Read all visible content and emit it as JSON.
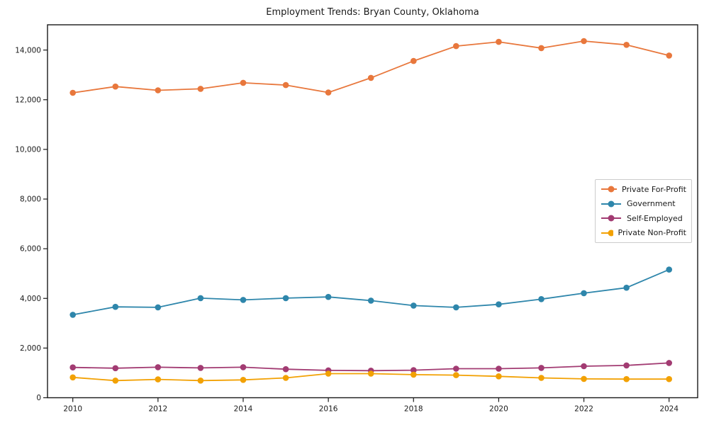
{
  "figure": {
    "background": "#ffffff",
    "text_color": "#1a1a1a",
    "axis_color": "#1a1a1a"
  },
  "chart_data": {
    "type": "line",
    "title": "Employment Trends: Bryan County, Oklahoma",
    "xlabel": "",
    "ylabel": "",
    "x": [
      2010,
      2011,
      2012,
      2013,
      2014,
      2015,
      2016,
      2017,
      2018,
      2019,
      2020,
      2021,
      2022,
      2023,
      2024
    ],
    "series": [
      {
        "name": "Private For-Profit",
        "color": "#E8773C",
        "values": [
          12280,
          12530,
          12380,
          12440,
          12680,
          12590,
          12290,
          12880,
          13560,
          14160,
          14330,
          14080,
          14360,
          14210,
          13780
        ]
      },
      {
        "name": "Government",
        "color": "#2E86AB",
        "values": [
          3340,
          3660,
          3640,
          4010,
          3940,
          4010,
          4060,
          3910,
          3710,
          3640,
          3760,
          3970,
          4210,
          4430,
          5160
        ]
      },
      {
        "name": "Self-Employed",
        "color": "#A23B72",
        "values": [
          1220,
          1190,
          1230,
          1200,
          1230,
          1150,
          1100,
          1090,
          1110,
          1170,
          1170,
          1200,
          1270,
          1300,
          1400
        ]
      },
      {
        "name": "Private Non-Profit",
        "color": "#F2A104",
        "values": [
          820,
          690,
          740,
          690,
          720,
          800,
          970,
          970,
          930,
          910,
          860,
          800,
          760,
          750,
          750
        ]
      }
    ],
    "ylim": [
      0,
      15000
    ],
    "yticks": [
      0,
      2000,
      4000,
      6000,
      8000,
      10000,
      12000,
      14000
    ],
    "y_tick_labels": [
      "0",
      "2,000",
      "4,000",
      "6,000",
      "8,000",
      "10,000",
      "12,000",
      "14,000"
    ],
    "x_tick_years": [
      2010,
      2012,
      2014,
      2016,
      2018,
      2020,
      2022,
      2024
    ],
    "x_tick_labels": [
      "2010",
      "2012",
      "2014",
      "2016",
      "2018",
      "2020",
      "2022",
      "2024"
    ],
    "grid": false,
    "legend_position": "right-center"
  }
}
